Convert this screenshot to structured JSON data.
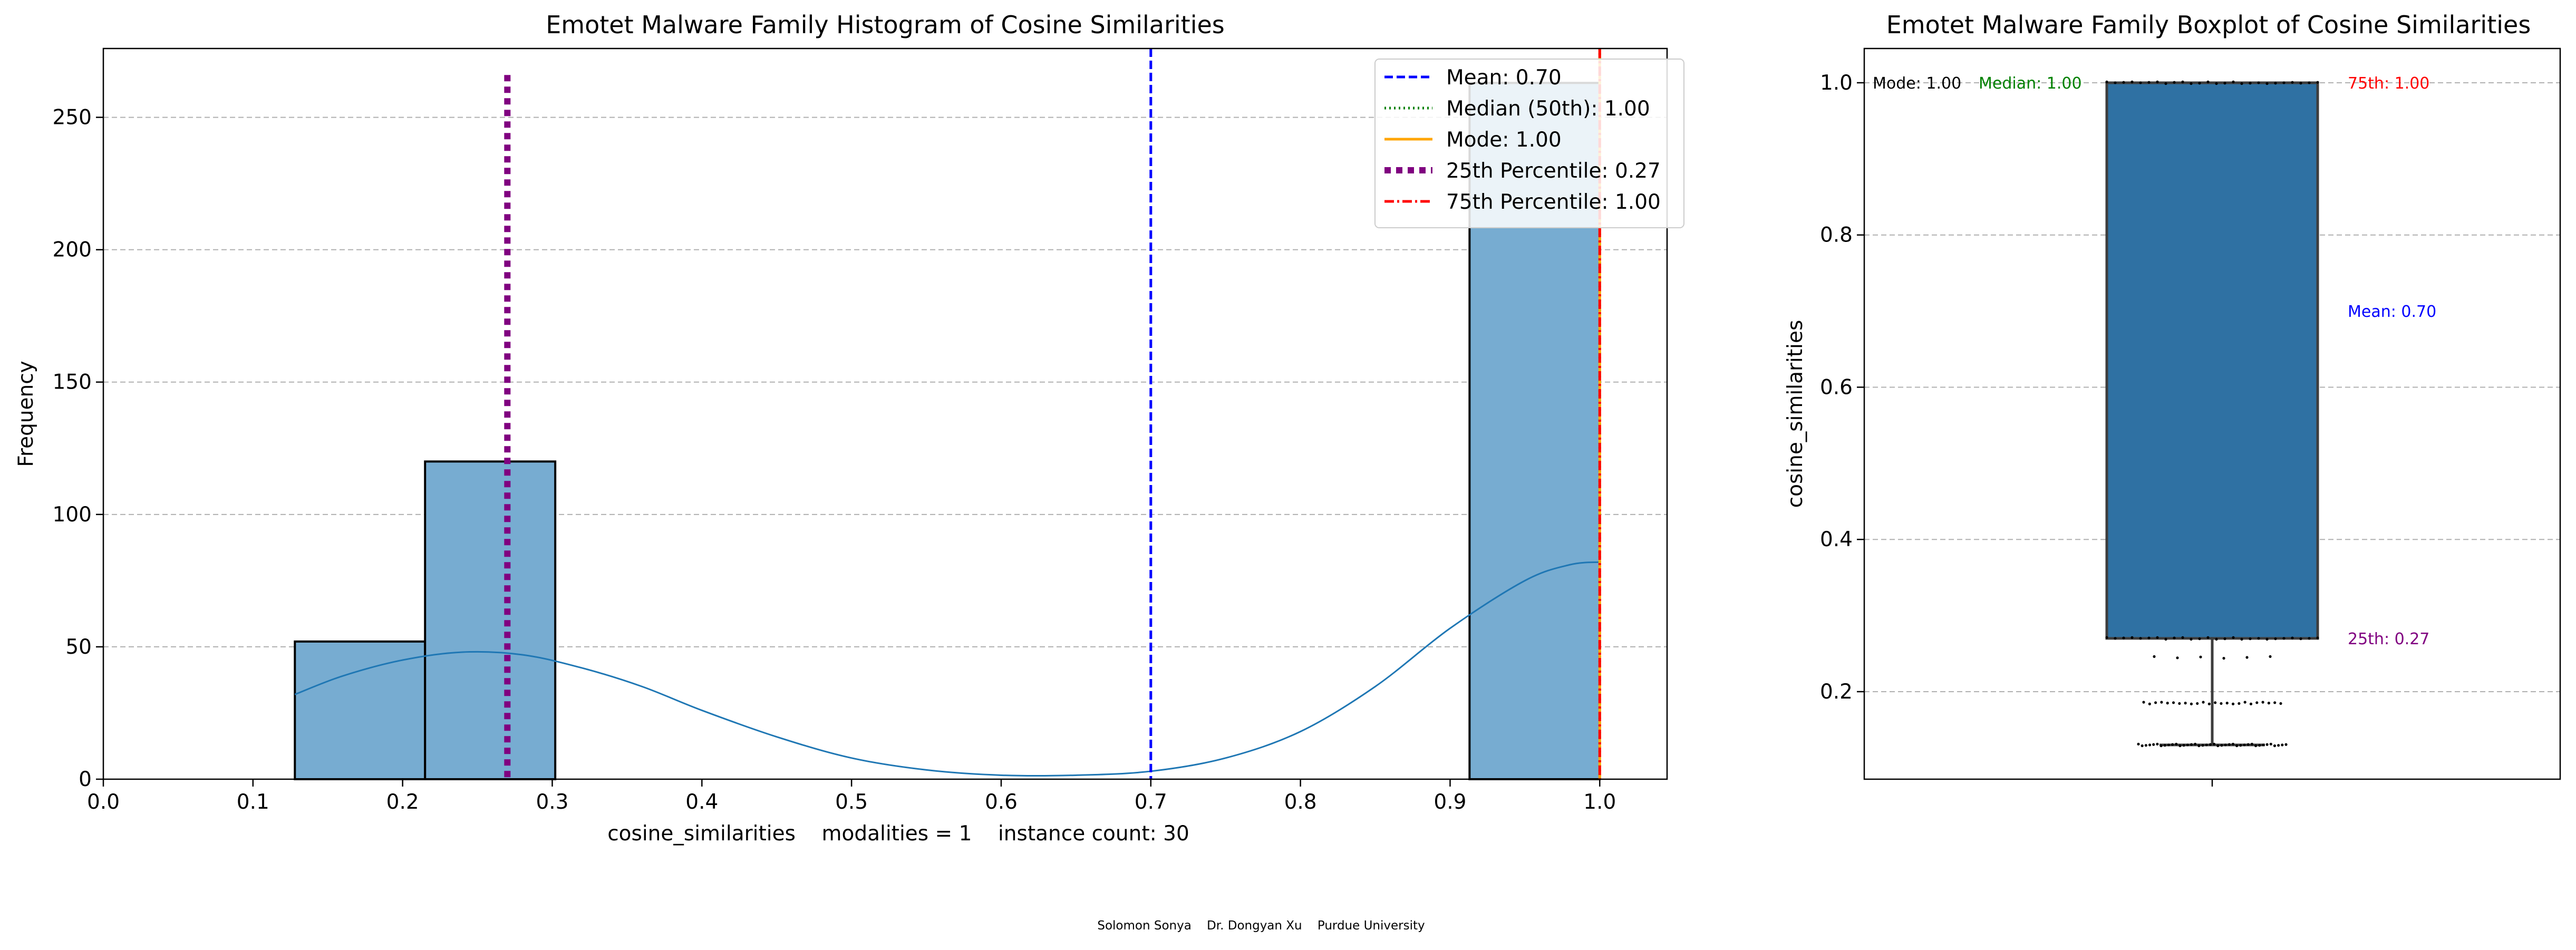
{
  "credits": "Solomon Sonya    Dr. Dongyan Xu    Purdue University",
  "chart_data": [
    {
      "type": "bar",
      "title": "Emotet Malware Family Histogram of Cosine Similarities",
      "xlabel": "cosine_similarities    modalities = 1    instance count: 30",
      "ylabel": "Frequency",
      "xlim": [
        0.0,
        1.045
      ],
      "ylim": [
        0,
        276
      ],
      "xticks": [
        "0.0",
        "0.1",
        "0.2",
        "0.3",
        "0.4",
        "0.5",
        "0.6",
        "0.7",
        "0.8",
        "0.9",
        "1.0"
      ],
      "yticks": [
        "0",
        "50",
        "100",
        "150",
        "200",
        "250"
      ],
      "grid": "y",
      "bins": [
        {
          "x0": 0.128,
          "x1": 0.215,
          "count": 52
        },
        {
          "x0": 0.215,
          "x1": 0.302,
          "count": 120
        },
        {
          "x0": 0.913,
          "x1": 1.0,
          "count": 263
        }
      ],
      "kde": {
        "x": [
          0.128,
          0.16,
          0.2,
          0.24,
          0.28,
          0.32,
          0.36,
          0.4,
          0.45,
          0.5,
          0.55,
          0.6,
          0.65,
          0.7,
          0.75,
          0.8,
          0.85,
          0.9,
          0.95,
          0.98,
          1.0
        ],
        "y": [
          32,
          39,
          45,
          48,
          47,
          42,
          35,
          26,
          16,
          8,
          3.5,
          1.5,
          1.5,
          3,
          8,
          18,
          35,
          57,
          75,
          81,
          82
        ]
      },
      "reference_lines": [
        {
          "label": "Mean: 0.70",
          "value": 0.7,
          "color": "#0000ff",
          "style": "dashed"
        },
        {
          "label": "Median (50th): 1.00",
          "value": 1.0,
          "color": "#008000",
          "style": "dotted"
        },
        {
          "label": "Mode: 1.00",
          "value": 1.0,
          "color": "#ffa500",
          "style": "solid"
        },
        {
          "label": "25th Percentile: 0.27",
          "value": 0.27,
          "color": "#800080",
          "style": "thick-dotted"
        },
        {
          "label": "75th Percentile: 1.00",
          "value": 1.0,
          "color": "#ff0000",
          "style": "dashdot"
        }
      ],
      "legend_position": "top-right",
      "colors": {
        "bar": "#77acd1",
        "kde": "#1f77b4"
      }
    },
    {
      "type": "box",
      "title": "Emotet Malware Family Boxplot of Cosine Similarities",
      "ylabel": "cosine_similarities",
      "ylim": [
        0.085,
        1.045
      ],
      "yticks": [
        "0.2",
        "0.4",
        "0.6",
        "0.8",
        "1.0"
      ],
      "grid": "y",
      "q1": 0.27,
      "median": 1.0,
      "q3": 1.0,
      "whisker_low": 0.13,
      "whisker_high": 1.0,
      "strip_points": [
        0.13,
        0.185,
        0.245,
        0.27,
        1.0
      ],
      "annotations": [
        {
          "text": "Mode: 1.00",
          "value": 1.0,
          "color": "#000000"
        },
        {
          "text": "Median: 1.00",
          "value": 1.0,
          "color": "#008000"
        },
        {
          "text": "75th: 1.00",
          "value": 1.0,
          "color": "#ff0000"
        },
        {
          "text": "Mean: 0.70",
          "value": 0.7,
          "color": "#0000ff"
        },
        {
          "text": "25th: 0.27",
          "value": 0.27,
          "color": "#800080"
        }
      ],
      "colors": {
        "box": "#2f71a3"
      }
    }
  ]
}
